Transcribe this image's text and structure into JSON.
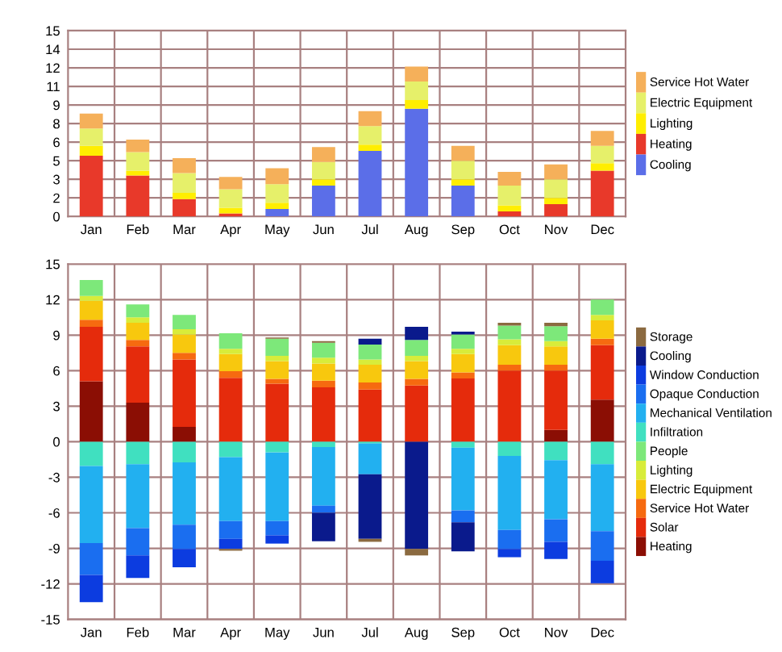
{
  "chart_data": [
    {
      "type": "bar",
      "stacked": true,
      "categories": [
        "Jan",
        "Feb",
        "Mar",
        "Apr",
        "May",
        "Jun",
        "Jul",
        "Aug",
        "Sep",
        "Oct",
        "Nov",
        "Dec"
      ],
      "series": [
        {
          "name": "Cooling",
          "color": "#5b6ee8",
          "values": [
            null,
            null,
            null,
            null,
            0.6,
            2.5,
            5.3,
            8.7,
            2.5,
            null,
            null,
            null
          ]
        },
        {
          "name": "Heating",
          "color": "#e8392a",
          "values": [
            4.9,
            3.3,
            1.4,
            0.25,
            null,
            null,
            null,
            null,
            null,
            0.4,
            1.0,
            3.7
          ]
        },
        {
          "name": "Lighting",
          "color": "#ffee00",
          "values": [
            0.8,
            0.4,
            0.5,
            0.45,
            0.5,
            0.5,
            0.5,
            0.7,
            0.5,
            0.5,
            0.5,
            0.6
          ]
        },
        {
          "name": "Electric Equipment",
          "color": "#e6f06a",
          "values": [
            1.4,
            1.5,
            1.6,
            1.5,
            1.5,
            1.4,
            1.5,
            1.5,
            1.5,
            1.6,
            1.5,
            1.4
          ]
        },
        {
          "name": "Service Hot Water",
          "color": "#f5b05a",
          "values": [
            1.2,
            1.0,
            1.2,
            1.0,
            1.3,
            1.2,
            1.2,
            1.2,
            1.2,
            1.1,
            1.2,
            1.2
          ]
        }
      ],
      "ylim": [
        0,
        15
      ],
      "yticks": [
        0,
        {
          "value": 1.5,
          "label": "2"
        },
        3,
        {
          "value": 4.5,
          "label": "5"
        },
        6,
        {
          "value": 7.5,
          "label": "8"
        },
        9,
        {
          "value": 10.5,
          "label": "11"
        },
        12,
        {
          "value": 13.5,
          "label": "14"
        },
        15
      ],
      "grid": true,
      "legend": "right"
    },
    {
      "type": "bar",
      "stacked": true,
      "categories": [
        "Jan",
        "Feb",
        "Mar",
        "Apr",
        "May",
        "Jun",
        "Jul",
        "Aug",
        "Sep",
        "Oct",
        "Nov",
        "Dec"
      ],
      "series": [
        {
          "name": "Heating",
          "color": "#8b0e04",
          "values": [
            5.1,
            3.3,
            1.25,
            null,
            null,
            null,
            null,
            null,
            null,
            null,
            1.0,
            3.55
          ]
        },
        {
          "name": "Solar",
          "color": "#e52b0c",
          "values": [
            4.6,
            4.75,
            5.7,
            5.4,
            4.9,
            4.6,
            4.4,
            4.75,
            5.35,
            6.0,
            5.0,
            4.6
          ]
        },
        {
          "name": "Service Hot Water",
          "color": "#f66a10",
          "values": [
            0.6,
            0.55,
            0.55,
            0.55,
            0.4,
            0.55,
            0.6,
            0.55,
            0.5,
            0.5,
            0.5,
            0.55
          ]
        },
        {
          "name": "Electric Equipment",
          "color": "#f8c80e",
          "values": [
            1.6,
            1.45,
            1.55,
            1.45,
            1.5,
            1.45,
            1.5,
            1.5,
            1.55,
            1.65,
            1.55,
            1.55
          ]
        },
        {
          "name": "Lighting",
          "color": "#d8ec3a",
          "values": [
            0.4,
            0.45,
            0.45,
            0.45,
            0.45,
            0.5,
            0.45,
            0.45,
            0.45,
            0.5,
            0.45,
            0.45
          ]
        },
        {
          "name": "People",
          "color": "#7de87a",
          "values": [
            1.35,
            1.1,
            1.2,
            1.3,
            1.45,
            1.25,
            1.25,
            1.35,
            1.2,
            1.15,
            1.25,
            1.3
          ]
        },
        {
          "color": "#0a1a8c",
          "values": [
            null,
            null,
            null,
            null,
            null,
            null,
            0.5,
            1.1,
            0.25,
            null,
            null,
            null
          ]
        },
        {
          "color": "#8b6a40",
          "values": [
            null,
            null,
            null,
            null,
            0.1,
            0.15,
            null,
            null,
            null,
            0.25,
            0.3,
            null
          ]
        },
        {
          "name": "Infiltration",
          "color": "#40e0c0",
          "values": [
            -2.05,
            -1.9,
            -1.75,
            -1.3,
            -0.9,
            -0.45,
            -0.15,
            null,
            -0.5,
            -1.2,
            -1.55,
            -1.9
          ]
        },
        {
          "name": "Mechanical Ventilation",
          "color": "#22b0f0",
          "values": [
            -6.5,
            -5.4,
            -5.25,
            -5.4,
            -5.8,
            -4.95,
            -2.6,
            null,
            -5.3,
            -6.25,
            -5.0,
            -5.65
          ]
        },
        {
          "name": "Opaque Conduction",
          "color": "#1a6ef0",
          "values": [
            -2.7,
            -2.3,
            -2.05,
            -1.5,
            -1.2,
            -0.6,
            null,
            null,
            -1.0,
            -1.6,
            -1.9,
            -2.5
          ]
        },
        {
          "name": "Window Conduction",
          "color": "#0c3ce0",
          "values": [
            -2.3,
            -1.9,
            -1.55,
            -0.85,
            -0.7,
            null,
            null,
            null,
            null,
            -0.7,
            -1.45,
            -1.9
          ]
        },
        {
          "name": "Cooling",
          "color": "#0a1a8c",
          "values": [
            null,
            null,
            null,
            null,
            null,
            -2.4,
            -5.45,
            -9.05,
            -2.45,
            null,
            null,
            null
          ]
        },
        {
          "name": "Storage",
          "color": "#8b6a40",
          "values": [
            null,
            null,
            null,
            -0.15,
            null,
            null,
            -0.25,
            -0.55,
            null,
            null,
            null,
            null
          ]
        }
      ],
      "ylim": [
        -15,
        15
      ],
      "yticks": [
        -15,
        -12,
        -9,
        -6,
        -3,
        0,
        3,
        6,
        9,
        12,
        15
      ],
      "grid": true,
      "legend": "right"
    }
  ]
}
